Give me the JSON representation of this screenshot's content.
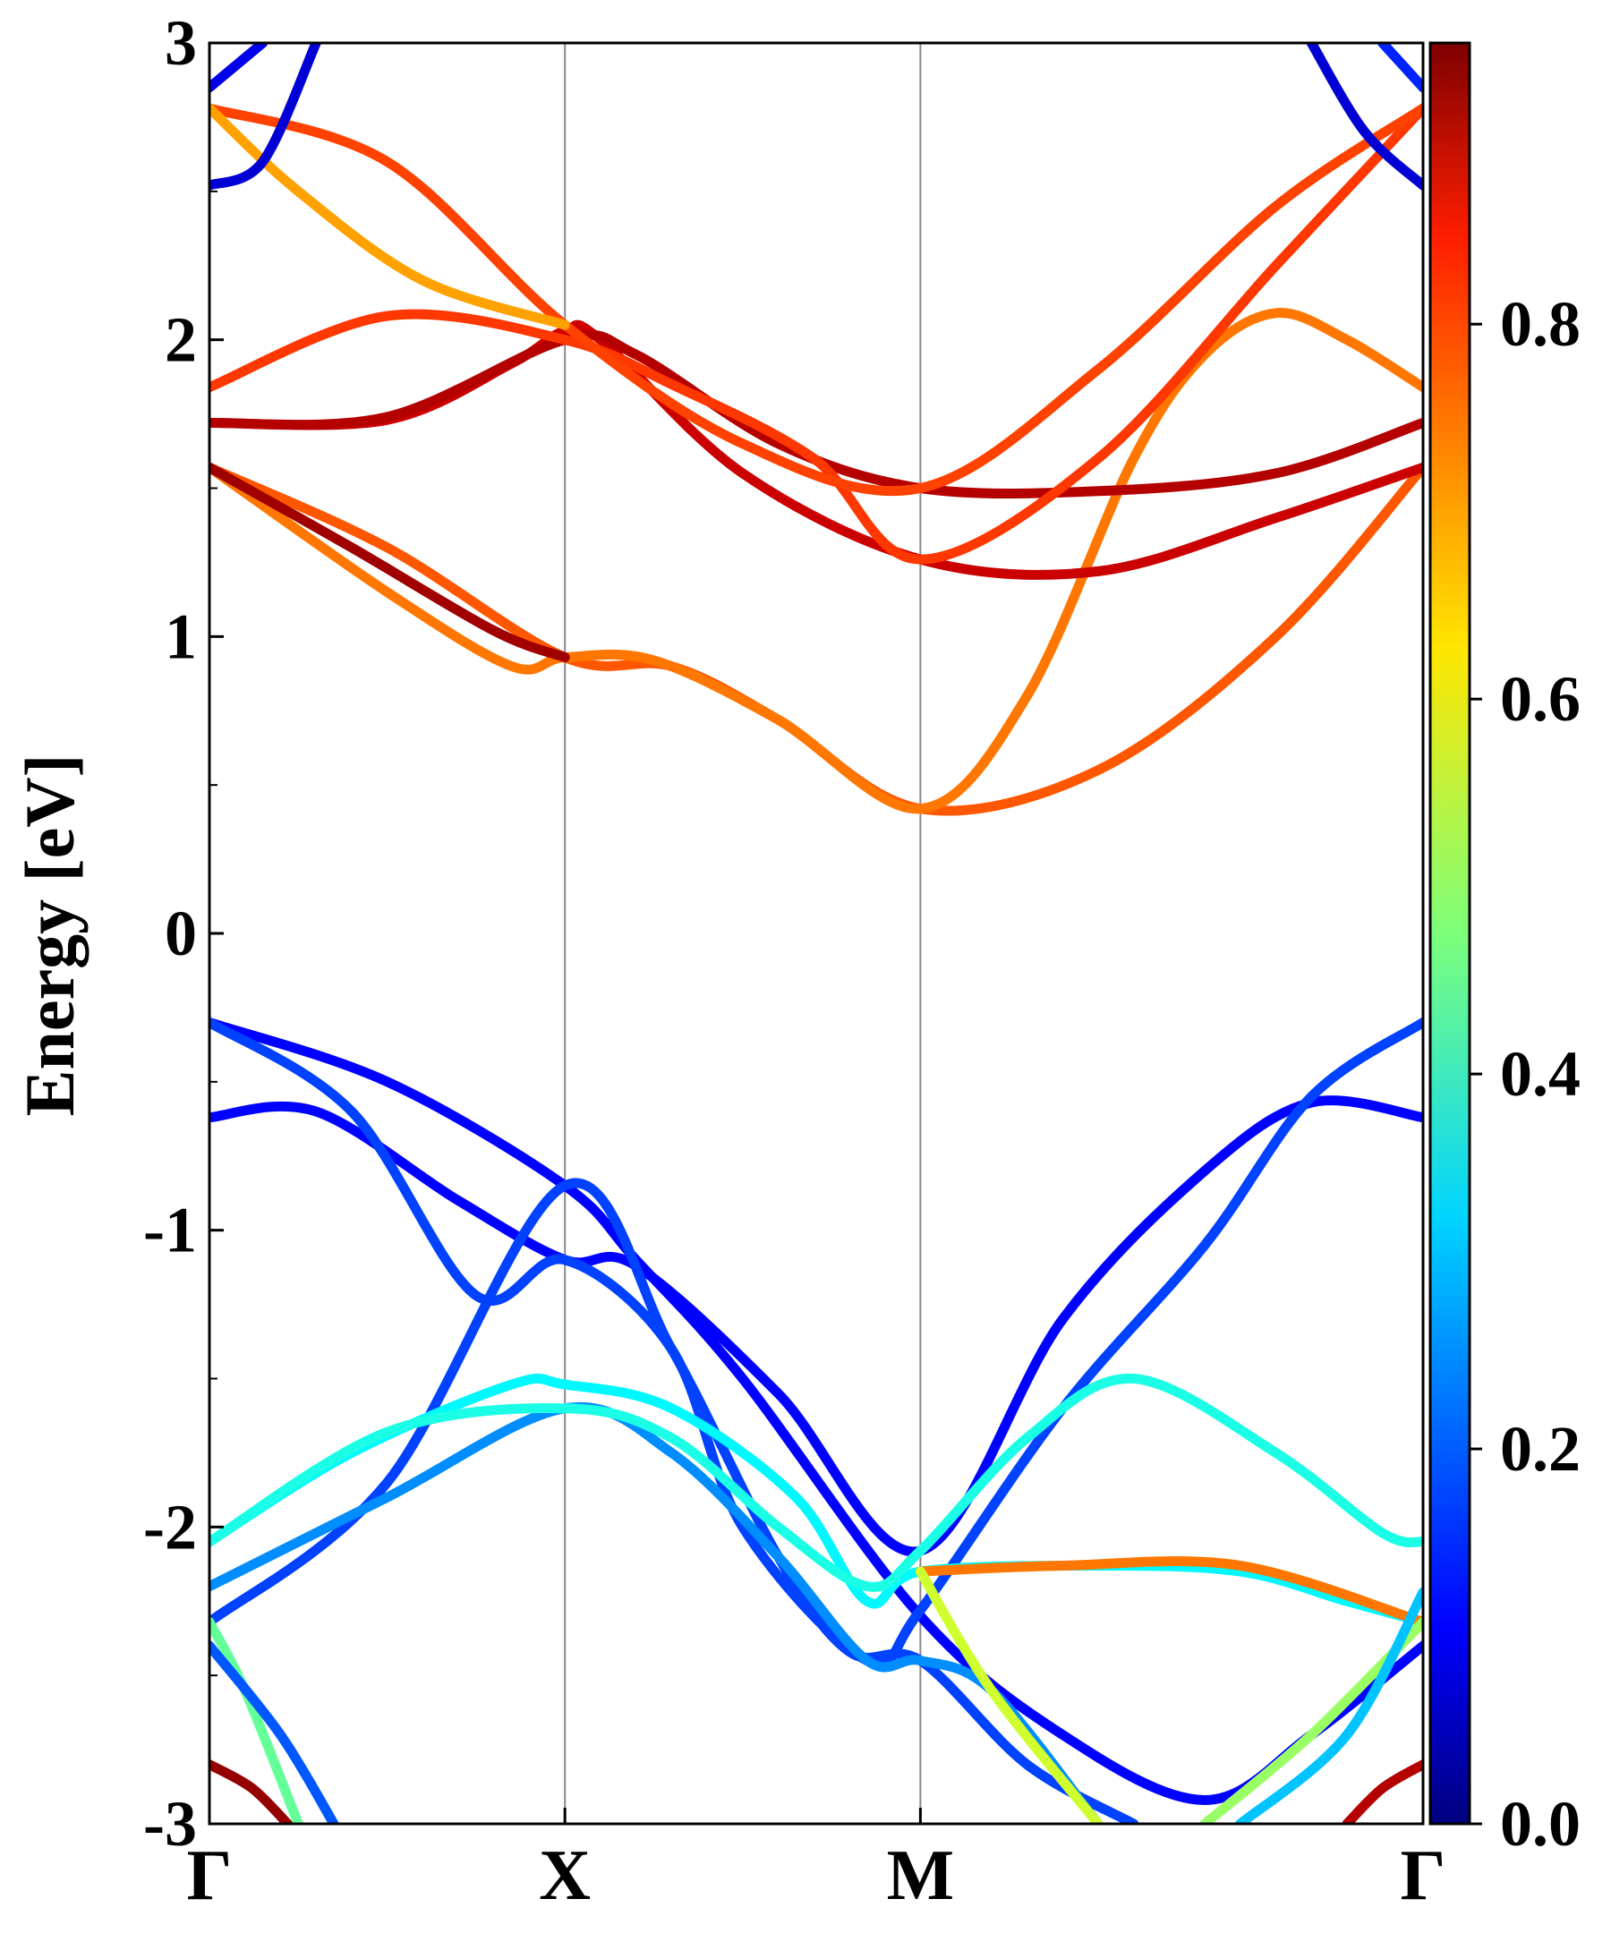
{
  "chart_data": {
    "type": "line",
    "title": "",
    "xlabel": "",
    "ylabel": "Energy [eV]",
    "ylim": [
      -3,
      3
    ],
    "x_ticks": [
      {
        "label": "Γ",
        "k": 0
      },
      {
        "label": "X",
        "k": 1
      },
      {
        "label": "M",
        "k": 2
      },
      {
        "label": "Γ",
        "k": 3.414
      }
    ],
    "y_ticks": [
      "-3",
      "-2",
      "-1",
      "0",
      "1",
      "2",
      "3"
    ],
    "colorbar": {
      "range": [
        0,
        0.95
      ],
      "ticks": [
        "0.0",
        "0.2",
        "0.4",
        "0.6",
        "0.8"
      ],
      "colormap": "jet"
    },
    "series": [
      {
        "values": [
          [
            0,
            -0.3
          ],
          [
            0.5,
            -0.5
          ],
          [
            1,
            -0.85
          ],
          [
            1.2,
            -1.1
          ],
          [
            1.5,
            -1.5
          ],
          [
            2,
            -2.3
          ],
          [
            2.4,
            -2.7
          ],
          [
            2.8,
            -2.92
          ],
          [
            3.1,
            -2.7
          ],
          [
            3.414,
            -2.4
          ]
        ],
        "weight": 0.12
      },
      {
        "values": [
          [
            0,
            -0.62
          ],
          [
            0.3,
            -0.6
          ],
          [
            0.7,
            -0.9
          ],
          [
            1,
            -1.1
          ],
          [
            1.2,
            -1.12
          ],
          [
            1.6,
            -1.55
          ],
          [
            2,
            -2.08
          ],
          [
            2.4,
            -1.3
          ],
          [
            2.8,
            -0.8
          ],
          [
            3.1,
            -0.57
          ],
          [
            3.414,
            -0.62
          ]
        ],
        "weight": 0.12
      },
      {
        "values": [
          [
            0,
            -0.3
          ],
          [
            0.4,
            -0.6
          ],
          [
            0.75,
            -1.22
          ],
          [
            1,
            -1.1
          ],
          [
            1.3,
            -1.4
          ],
          [
            1.5,
            -2.0
          ],
          [
            1.85,
            -2.45
          ],
          [
            2,
            -2.28
          ],
          [
            2.4,
            -1.6
          ],
          [
            2.8,
            -1.05
          ],
          [
            3.1,
            -0.55
          ],
          [
            3.414,
            -0.3
          ]
        ],
        "weight": 0.18
      },
      {
        "values": [
          [
            0,
            -2.32
          ],
          [
            0.5,
            -1.85
          ],
          [
            1,
            -0.85
          ],
          [
            1.3,
            -1.4
          ],
          [
            1.6,
            -2.1
          ],
          [
            1.8,
            -2.42
          ],
          [
            2,
            -2.45
          ],
          [
            2.3,
            -2.8
          ],
          [
            2.6,
            -3.0
          ]
        ],
        "weight": 0.18
      },
      {
        "values": [
          [
            0,
            -2.2
          ],
          [
            0.5,
            -1.9
          ],
          [
            1,
            -1.6
          ],
          [
            1.3,
            -1.75
          ],
          [
            1.6,
            -2.1
          ],
          [
            1.85,
            -2.45
          ],
          [
            2,
            -2.45
          ],
          [
            2.2,
            -2.55
          ],
          [
            2.5,
            -3.0
          ]
        ],
        "weight": 0.25
      },
      {
        "values": [
          [
            0,
            -2.05
          ],
          [
            0.4,
            -1.75
          ],
          [
            0.85,
            -1.52
          ],
          [
            1,
            -1.52
          ],
          [
            1.3,
            -1.6
          ],
          [
            1.65,
            -1.9
          ],
          [
            1.85,
            -2.25
          ],
          [
            2,
            -2.15
          ],
          [
            2.5,
            -2.13
          ],
          [
            2.9,
            -2.15
          ],
          [
            3.2,
            -2.25
          ],
          [
            3.414,
            -2.32
          ]
        ],
        "weight": 0.35
      },
      {
        "values": [
          [
            0,
            -2.05
          ],
          [
            0.5,
            -1.68
          ],
          [
            1,
            -1.6
          ],
          [
            1.3,
            -1.7
          ],
          [
            1.6,
            -2.0
          ],
          [
            1.85,
            -2.2
          ],
          [
            2,
            -2.08
          ],
          [
            2.3,
            -1.7
          ],
          [
            2.6,
            -1.5
          ],
          [
            3,
            -1.75
          ],
          [
            3.3,
            -2.02
          ],
          [
            3.414,
            -2.05
          ]
        ],
        "weight": 0.38
      },
      {
        "values": [
          [
            2,
            -2.15
          ],
          [
            2.4,
            -2.13
          ],
          [
            2.9,
            -2.13
          ],
          [
            3.414,
            -2.32
          ]
        ],
        "weight": 0.72
      },
      {
        "values": [
          [
            2,
            -2.15
          ],
          [
            2.2,
            -2.55
          ],
          [
            2.5,
            -3.0
          ]
        ],
        "weight": 0.55
      },
      {
        "values": [
          [
            0,
            -2.32
          ],
          [
            0.1,
            -2.55
          ],
          [
            0.25,
            -3.0
          ]
        ],
        "weight": 0.45
      },
      {
        "values": [
          [
            0,
            -2.4
          ],
          [
            0.2,
            -2.7
          ],
          [
            0.35,
            -3.0
          ]
        ],
        "weight": 0.2
      },
      {
        "values": [
          [
            2.8,
            -3.0
          ],
          [
            3.1,
            -2.7
          ],
          [
            3.414,
            -2.32
          ]
        ],
        "weight": 0.5
      },
      {
        "values": [
          [
            2.9,
            -3.0
          ],
          [
            3.2,
            -2.7
          ],
          [
            3.414,
            -2.22
          ]
        ],
        "weight": 0.3
      },
      {
        "values": [
          [
            0,
            -2.8
          ],
          [
            0.12,
            -2.88
          ],
          [
            0.22,
            -3.0
          ]
        ],
        "weight": 0.93
      },
      {
        "values": [
          [
            3.2,
            -3.0
          ],
          [
            3.3,
            -2.88
          ],
          [
            3.414,
            -2.8
          ]
        ],
        "weight": 0.9
      },
      {
        "values": [
          [
            0,
            1.57
          ],
          [
            0.5,
            1.3
          ],
          [
            1,
            0.93
          ],
          [
            1.3,
            0.9
          ],
          [
            1.6,
            0.72
          ],
          [
            2,
            0.42
          ],
          [
            2.5,
            0.55
          ],
          [
            3.0,
            1.0
          ],
          [
            3.414,
            1.57
          ]
        ],
        "weight": 0.75
      },
      {
        "values": [
          [
            0,
            1.57
          ],
          [
            0.5,
            1.15
          ],
          [
            0.85,
            0.9
          ],
          [
            1,
            0.93
          ],
          [
            1.25,
            0.92
          ],
          [
            1.6,
            0.72
          ],
          [
            2,
            0.42
          ],
          [
            2.3,
            0.8
          ],
          [
            2.6,
            1.6
          ],
          [
            2.8,
            1.95
          ],
          [
            3.0,
            2.09
          ],
          [
            3.2,
            2.0
          ],
          [
            3.414,
            1.84
          ]
        ],
        "weight": 0.72
      },
      {
        "values": [
          [
            0,
            1.57
          ],
          [
            0.4,
            1.3
          ],
          [
            0.8,
            1.02
          ],
          [
            1,
            0.93
          ]
        ],
        "weight": 0.92
      },
      {
        "values": [
          [
            0,
            1.72
          ],
          [
            0.5,
            1.73
          ],
          [
            0.85,
            1.92
          ],
          [
            1,
            2.03
          ],
          [
            1.1,
            2.0
          ],
          [
            1.5,
            1.55
          ],
          [
            2,
            1.26
          ],
          [
            2.5,
            1.22
          ],
          [
            3.0,
            1.4
          ],
          [
            3.414,
            1.57
          ]
        ],
        "weight": 0.88
      },
      {
        "values": [
          [
            0,
            1.72
          ],
          [
            0.5,
            1.74
          ],
          [
            1,
            2.0
          ],
          [
            1.2,
            1.95
          ],
          [
            1.6,
            1.65
          ],
          [
            2,
            1.5
          ],
          [
            2.5,
            1.49
          ],
          [
            3.0,
            1.55
          ],
          [
            3.414,
            1.72
          ]
        ],
        "weight": 0.9
      },
      {
        "values": [
          [
            0,
            1.84
          ],
          [
            0.5,
            2.08
          ],
          [
            1,
            2.0
          ],
          [
            1.3,
            1.85
          ],
          [
            1.7,
            1.6
          ],
          [
            2,
            1.26
          ],
          [
            2.5,
            1.6
          ],
          [
            3.0,
            2.25
          ],
          [
            3.414,
            2.78
          ]
        ],
        "weight": 0.78
      },
      {
        "values": [
          [
            0,
            2.78
          ],
          [
            0.5,
            2.6
          ],
          [
            1,
            2.05
          ],
          [
            1.5,
            1.65
          ],
          [
            2,
            1.5
          ],
          [
            2.5,
            1.9
          ],
          [
            3.0,
            2.45
          ],
          [
            3.414,
            2.78
          ]
        ],
        "weight": 0.77
      },
      {
        "values": [
          [
            0,
            2.78
          ],
          [
            0.25,
            2.5
          ],
          [
            0.6,
            2.2
          ],
          [
            1,
            2.05
          ]
        ],
        "weight": 0.68
      },
      {
        "values": [
          [
            0,
            2.52
          ],
          [
            0.15,
            2.6
          ],
          [
            0.3,
            3.0
          ]
        ],
        "weight": 0.08
      },
      {
        "values": [
          [
            0,
            2.85
          ],
          [
            0.15,
            3.0
          ]
        ],
        "weight": 0.1
      },
      {
        "values": [
          [
            3.1,
            3.0
          ],
          [
            3.25,
            2.7
          ],
          [
            3.414,
            2.52
          ]
        ],
        "weight": 0.08
      },
      {
        "values": [
          [
            3.3,
            3.0
          ],
          [
            3.414,
            2.85
          ]
        ],
        "weight": 0.15
      }
    ]
  }
}
